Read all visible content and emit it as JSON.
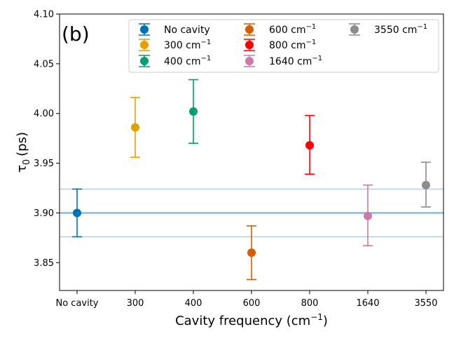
{
  "chart_data": {
    "type": "scatter",
    "panel_label": "(b)",
    "xlabel": "Cavity frequency (cm",
    "xlabel_sup": "−1",
    "xlabel_close": ")",
    "ylabel_base": "τ",
    "ylabel_sub": "0",
    "ylabel_unit": "(ps)",
    "ylim": [
      3.822,
      4.1
    ],
    "yticks": [
      "3.85",
      "3.90",
      "3.95",
      "4.00",
      "4.05",
      "4.10"
    ],
    "categories": [
      "No cavity",
      "300",
      "400",
      "600",
      "800",
      "1640",
      "3550"
    ],
    "reference": {
      "value": 3.9,
      "lower": 3.876,
      "upper": 3.924
    },
    "series": [
      {
        "name": "No cavity",
        "unit": "",
        "category": "No cavity",
        "value": 3.9,
        "lower": 3.876,
        "upper": 3.924,
        "color": "#0072b2"
      },
      {
        "name": "300 cm",
        "unit": "−1",
        "category": "300",
        "value": 3.986,
        "lower": 3.956,
        "upper": 4.016,
        "color": "#e69f00"
      },
      {
        "name": "400 cm",
        "unit": "−1",
        "category": "400",
        "value": 4.002,
        "lower": 3.97,
        "upper": 4.034,
        "color": "#009e73"
      },
      {
        "name": "600 cm",
        "unit": "−1",
        "category": "600",
        "value": 3.86,
        "lower": 3.833,
        "upper": 3.887,
        "color": "#d55e00"
      },
      {
        "name": "800 cm",
        "unit": "−1",
        "category": "800",
        "value": 3.968,
        "lower": 3.939,
        "upper": 3.998,
        "color": "#ff0000"
      },
      {
        "name": "1640 cm",
        "unit": "−1",
        "category": "1640",
        "value": 3.897,
        "lower": 3.867,
        "upper": 3.928,
        "color": "#cc79a7"
      },
      {
        "name": "3550 cm",
        "unit": "−1",
        "category": "3550",
        "value": 3.928,
        "lower": 3.906,
        "upper": 3.951,
        "color": "#8c8c8c"
      }
    ]
  }
}
